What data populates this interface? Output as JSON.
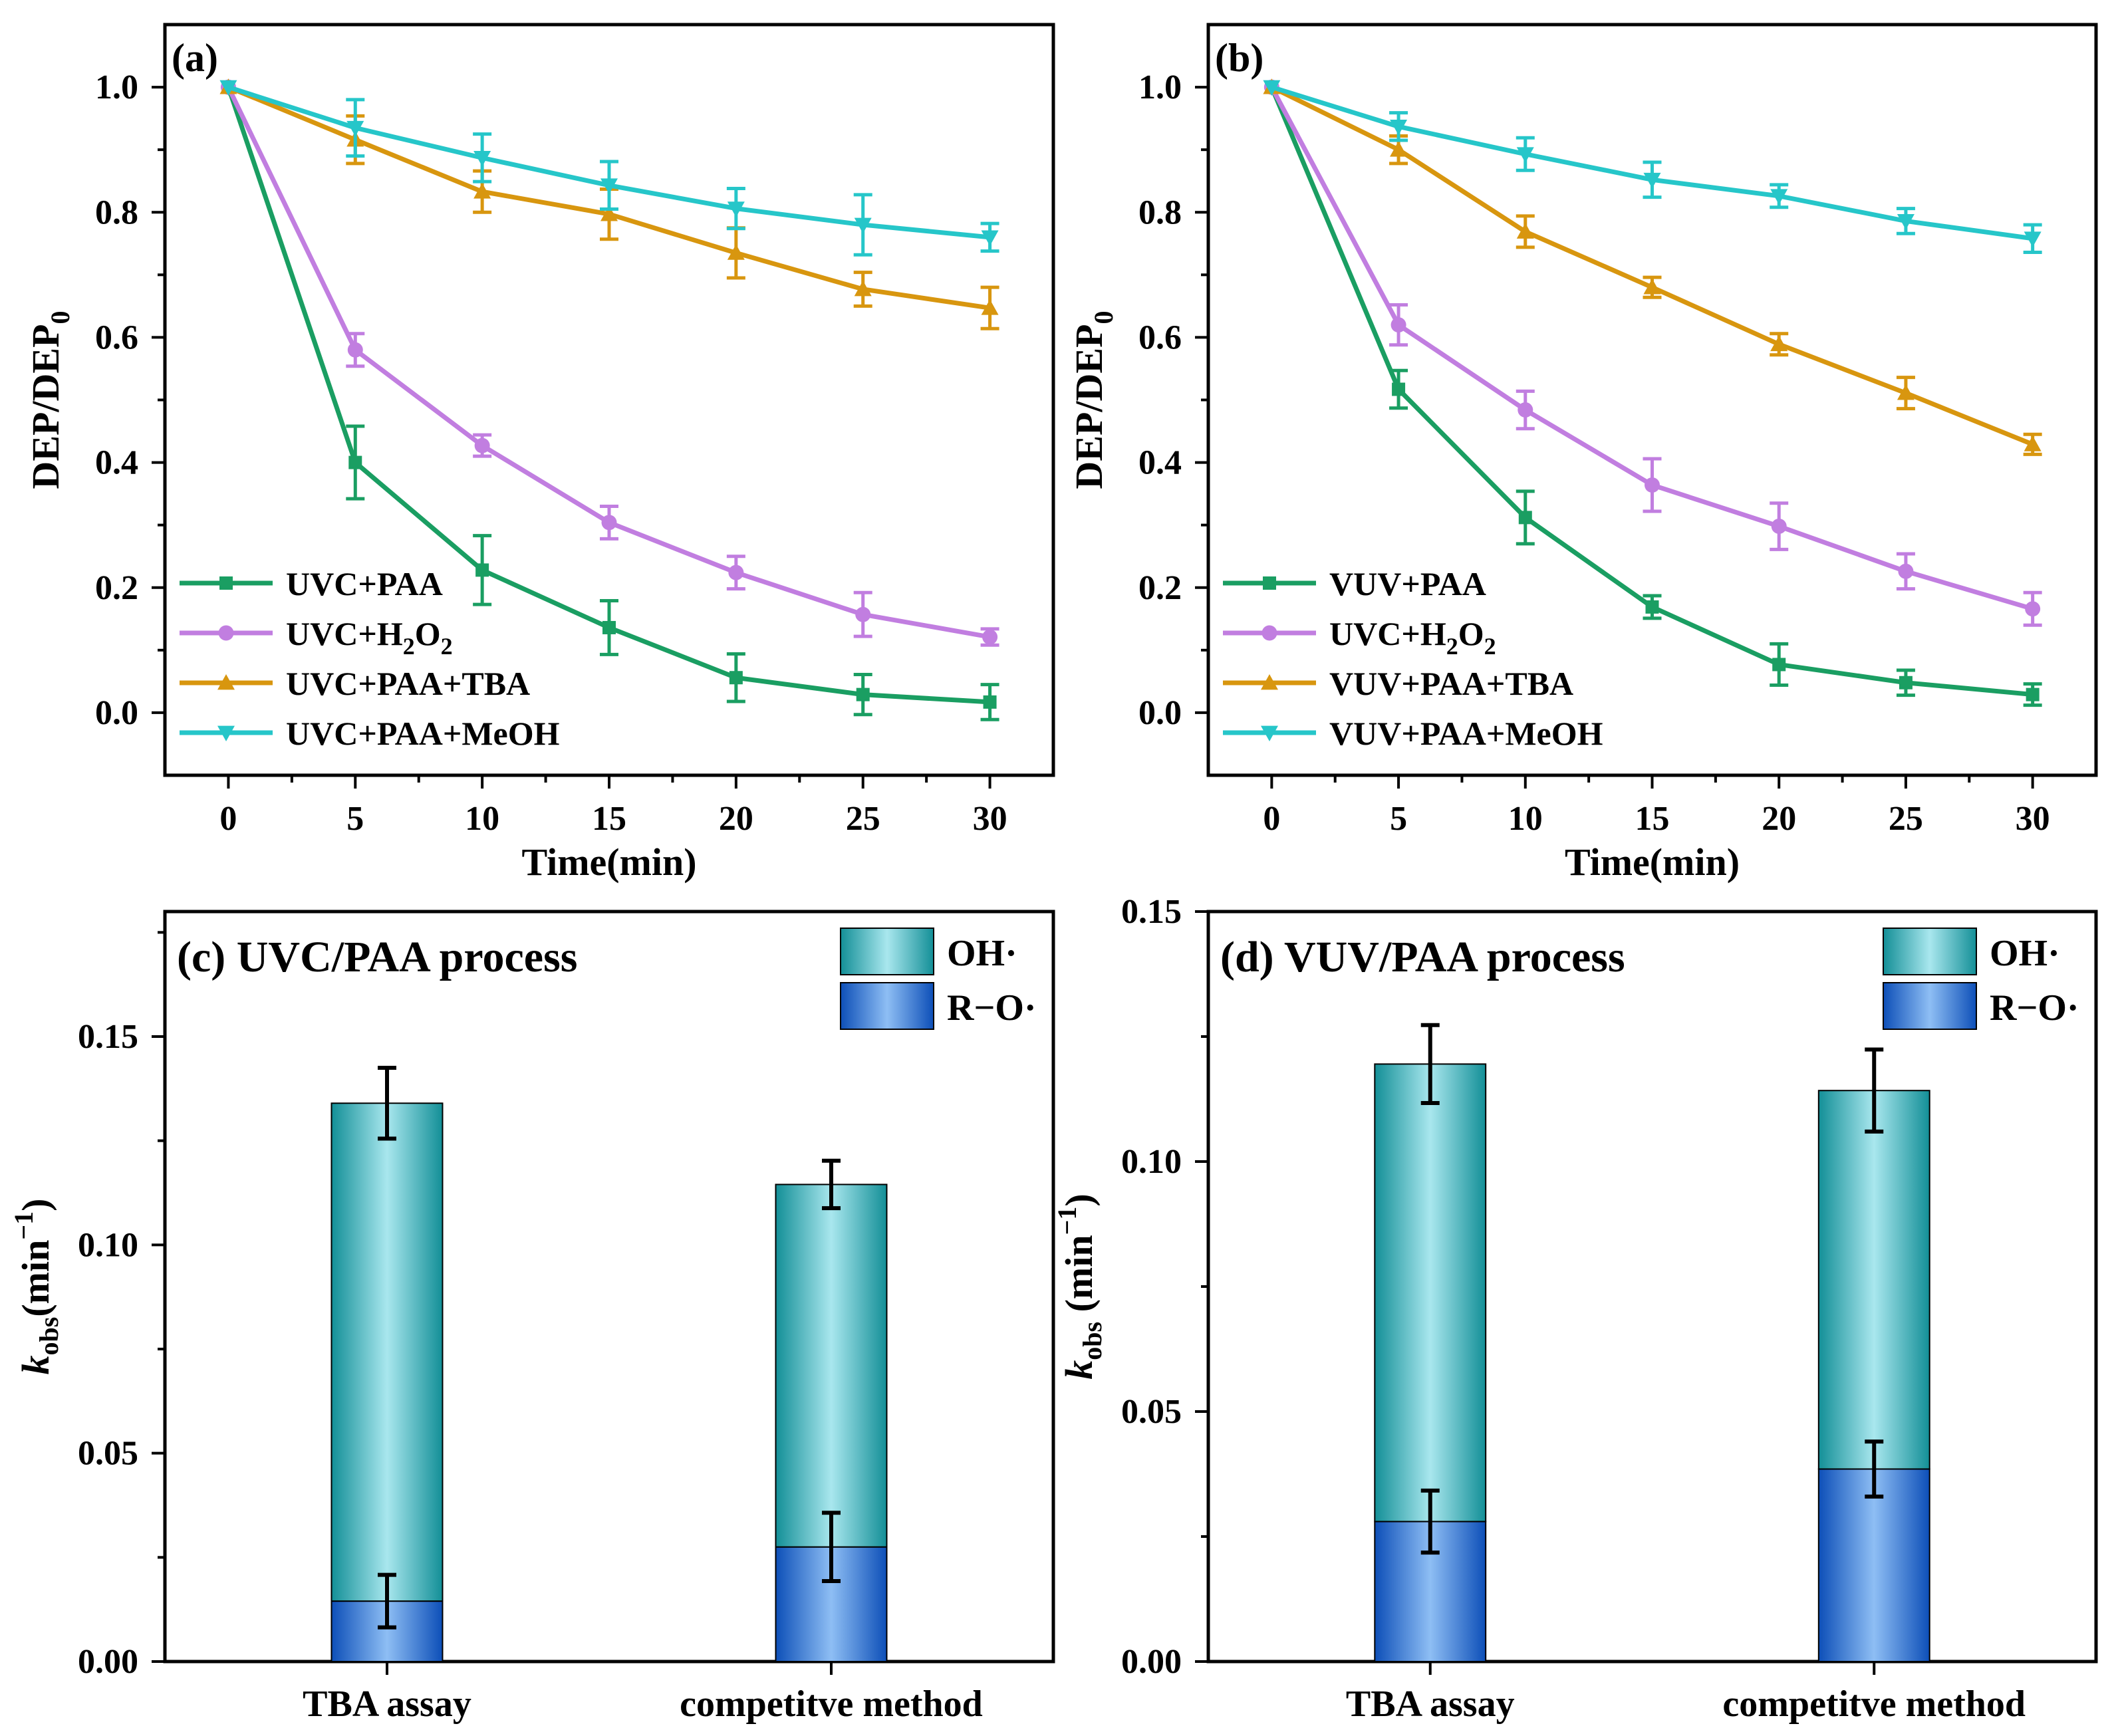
{
  "colors": {
    "green": "#1a9e62",
    "violet": "#c17ee0",
    "orange": "#d8960f",
    "cyan": "#26c6c9",
    "oh_dark": "#138f97",
    "oh_light": "#a9e7ee",
    "ro_dark": "#0d4fb8",
    "ro_light": "#8ebef4"
  },
  "chart_data": [
    {
      "id": "a",
      "type": "line",
      "panel_label": "(a)",
      "xlabel": "Time(min)",
      "ylabel": "DEP/DEP",
      "ylabel_sub": "0",
      "x": [
        0,
        5,
        10,
        15,
        20,
        25,
        30
      ],
      "xticks": [
        "0",
        "5",
        "10",
        "15",
        "20",
        "25",
        "30"
      ],
      "yticks": [
        "0.0",
        "0.2",
        "0.4",
        "0.6",
        "0.8",
        "1.0"
      ],
      "xlim": [
        -2.5,
        32.5
      ],
      "ylim": [
        -0.1,
        1.1
      ],
      "legend_position": "bottom-left",
      "series": [
        {
          "name": "UVC+PAA",
          "name_main": "UVC+PAA",
          "name_sub": "",
          "name_tail": "",
          "color_key": "green",
          "marker": "square",
          "values": [
            1.0,
            0.4,
            0.228,
            0.136,
            0.056,
            0.029,
            0.017
          ],
          "errors": [
            0,
            0.058,
            0.055,
            0.043,
            0.038,
            0.032,
            0.028
          ]
        },
        {
          "name": "UVC+H2O2",
          "name_main": "UVC+H",
          "name_sub": "2",
          "name_tail": "O",
          "name_sub2": "2",
          "color_key": "violet",
          "marker": "circle",
          "values": [
            1.0,
            0.58,
            0.427,
            0.304,
            0.224,
            0.157,
            0.121
          ],
          "errors": [
            0,
            0.026,
            0.017,
            0.026,
            0.026,
            0.035,
            0.013
          ]
        },
        {
          "name": "UVC+PAA+TBA",
          "name_main": "UVC+PAA+TBA",
          "name_sub": "",
          "name_tail": "",
          "color_key": "orange",
          "marker": "triangle-up",
          "values": [
            1.0,
            0.916,
            0.833,
            0.797,
            0.735,
            0.677,
            0.647
          ],
          "errors": [
            0,
            0.038,
            0.033,
            0.04,
            0.04,
            0.027,
            0.033
          ]
        },
        {
          "name": "UVC+PAA+MeOH",
          "name_main": "UVC+PAA+MeOH",
          "name_sub": "",
          "name_tail": "",
          "color_key": "cyan",
          "marker": "triangle-down",
          "values": [
            1.0,
            0.935,
            0.887,
            0.843,
            0.806,
            0.78,
            0.76
          ],
          "errors": [
            0,
            0.045,
            0.038,
            0.038,
            0.032,
            0.048,
            0.022
          ]
        }
      ]
    },
    {
      "id": "b",
      "type": "line",
      "panel_label": "(b)",
      "xlabel": "Time(min)",
      "ylabel": "DEP/DEP",
      "ylabel_sub": "0",
      "x": [
        0,
        5,
        10,
        15,
        20,
        25,
        30
      ],
      "xticks": [
        "0",
        "5",
        "10",
        "15",
        "20",
        "25",
        "30"
      ],
      "yticks": [
        "0.0",
        "0.2",
        "0.4",
        "0.6",
        "0.8",
        "1.0"
      ],
      "xlim": [
        -2.5,
        32.5
      ],
      "ylim": [
        -0.1,
        1.1
      ],
      "legend_position": "bottom-left",
      "series": [
        {
          "name": "VUV+PAA",
          "name_main": "VUV+PAA",
          "name_sub": "",
          "name_tail": "",
          "color_key": "green",
          "marker": "square",
          "values": [
            1.0,
            0.517,
            0.312,
            0.169,
            0.077,
            0.048,
            0.029
          ],
          "errors": [
            0,
            0.03,
            0.042,
            0.018,
            0.033,
            0.02,
            0.017
          ]
        },
        {
          "name": "UVC+H2O2",
          "name_main": "UVC+H",
          "name_sub": "2",
          "name_tail": "O",
          "name_sub2": "2",
          "color_key": "violet",
          "marker": "circle",
          "values": [
            1.0,
            0.62,
            0.484,
            0.364,
            0.298,
            0.226,
            0.166
          ],
          "errors": [
            0,
            0.032,
            0.03,
            0.042,
            0.037,
            0.028,
            0.026
          ]
        },
        {
          "name": "VUV+PAA+TBA",
          "name_main": "VUV+PAA+TBA",
          "name_sub": "",
          "name_tail": "",
          "color_key": "orange",
          "marker": "triangle-up",
          "values": [
            1.0,
            0.9,
            0.769,
            0.68,
            0.589,
            0.511,
            0.429
          ],
          "errors": [
            0,
            0.022,
            0.025,
            0.016,
            0.017,
            0.025,
            0.016
          ]
        },
        {
          "name": "VUV+PAA+MeOH",
          "name_main": "VUV+PAA+MeOH",
          "name_sub": "",
          "name_tail": "",
          "color_key": "cyan",
          "marker": "triangle-down",
          "values": [
            1.0,
            0.937,
            0.893,
            0.852,
            0.826,
            0.786,
            0.758
          ],
          "errors": [
            0,
            0.022,
            0.026,
            0.028,
            0.018,
            0.02,
            0.022
          ]
        }
      ]
    },
    {
      "id": "c",
      "type": "bar",
      "stacked": true,
      "title": "(c) UVC/PAA process",
      "ylabel_k": "k",
      "ylabel_obs": "obs",
      "ylabel_unit": "(min",
      "ylabel_exp": "−1",
      "ylabel_close": ")",
      "categories": [
        "TBA assay",
        "competitve method"
      ],
      "yticks": [
        "0.00",
        "0.05",
        "0.10",
        "0.15"
      ],
      "ytick_values": [
        0,
        0.05,
        0.1,
        0.15
      ],
      "ylim": [
        0,
        0.18
      ],
      "legend_position": "top-right",
      "series": [
        {
          "name": "R−O·",
          "color_key": "ro",
          "values": [
            0.0145,
            0.0275
          ],
          "errors": [
            0.0063,
            0.0082
          ]
        },
        {
          "name": "OH·",
          "color_key": "oh",
          "values": [
            0.1195,
            0.087
          ],
          "errors": [
            0.0085,
            0.0057
          ]
        }
      ]
    },
    {
      "id": "d",
      "type": "bar",
      "stacked": true,
      "title": "(d) VUV/PAA process",
      "ylabel_k": "k",
      "ylabel_obs": "obs",
      "ylabel_unit": " (min",
      "ylabel_exp": "−1",
      "ylabel_close": ")",
      "categories": [
        "TBA assay",
        "competitve method"
      ],
      "yticks": [
        "0.00",
        "0.05",
        "0.10",
        "0.15"
      ],
      "ytick_values": [
        0,
        0.05,
        0.1,
        0.15
      ],
      "ylim": [
        0,
        0.15
      ],
      "legend_position": "top-right",
      "series": [
        {
          "name": "R−O·",
          "color_key": "ro",
          "values": [
            0.028,
            0.0385
          ],
          "errors": [
            0.0062,
            0.0055
          ]
        },
        {
          "name": "OH·",
          "color_key": "oh",
          "values": [
            0.0915,
            0.0757
          ],
          "errors": [
            0.0078,
            0.0082
          ]
        }
      ]
    }
  ]
}
